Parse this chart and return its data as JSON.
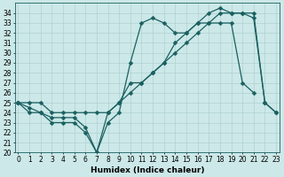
{
  "title": "",
  "xlabel": "Humidex (Indice chaleur)",
  "background_color": "#cce8e8",
  "grid_color": "#aacccc",
  "line_color": "#1a6060",
  "x_values": [
    0,
    1,
    2,
    3,
    4,
    5,
    6,
    7,
    8,
    9,
    10,
    11,
    12,
    13,
    14,
    15,
    16,
    17,
    18,
    19,
    20,
    21,
    22,
    23
  ],
  "line1": [
    25,
    24.5,
    24,
    23.5,
    23.5,
    23.5,
    22.5,
    20,
    23,
    24,
    29,
    33,
    33.5,
    33,
    32,
    32,
    33,
    34,
    34.5,
    34,
    34,
    33.5,
    25,
    24
  ],
  "line2": [
    25,
    24,
    24,
    23,
    23,
    23,
    22,
    20,
    24,
    25,
    27,
    27,
    28,
    29,
    31,
    32,
    33,
    33,
    33,
    33,
    27,
    26,
    null,
    null
  ],
  "line3": [
    25,
    25,
    25,
    24,
    24,
    24,
    24,
    24,
    24,
    25,
    26,
    27,
    28,
    29,
    30,
    31,
    32,
    33,
    34,
    34,
    34,
    34,
    25,
    24
  ],
  "xlim": [
    -0.3,
    23.3
  ],
  "ylim": [
    20,
    35
  ],
  "yticks": [
    20,
    21,
    22,
    23,
    24,
    25,
    26,
    27,
    28,
    29,
    30,
    31,
    32,
    33,
    34
  ],
  "xticks": [
    0,
    1,
    2,
    3,
    4,
    5,
    6,
    7,
    8,
    9,
    10,
    11,
    12,
    13,
    14,
    15,
    16,
    17,
    18,
    19,
    20,
    21,
    22,
    23
  ],
  "markersize": 2.5,
  "linewidth": 0.9,
  "fontsize_label": 6.5,
  "fontsize_tick": 5.5
}
